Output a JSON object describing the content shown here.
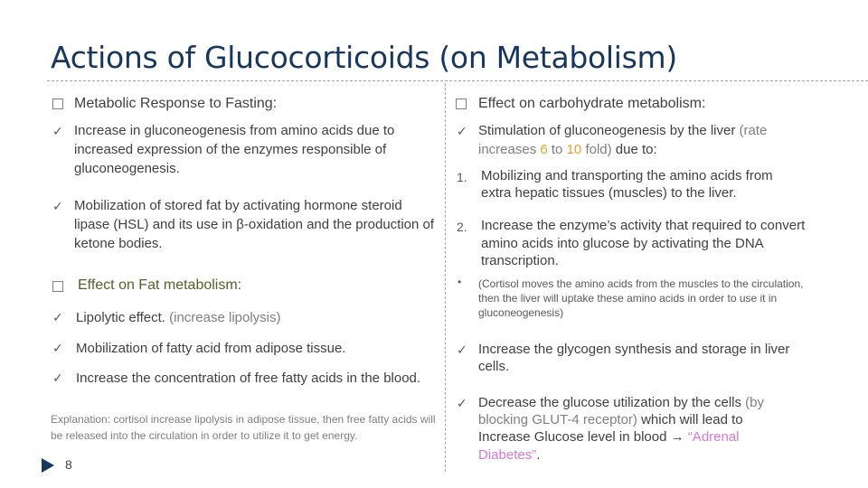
{
  "title": "Actions of Glucocorticoids (on Metabolism)",
  "left": {
    "heading1": "Metabolic Response to Fasting:",
    "item1": "Increase in gluconeogenesis from amino acids due to increased expression of the enzymes responsible of gluconeogenesis.",
    "item2": "Mobilization of stored fat by activating  hormone steroid lipase (HSL) and its use in β-oxidation and the production of ketone bodies.",
    "heading2": "Effect on Fat metabolism:",
    "item3_main": "Lipolytic effect.",
    "item3_note": "(increase lipolysis)",
    "item4": "Mobilization of fatty acid from adipose tissue.",
    "item5": "Increase the concentration of free fatty acids in the blood.",
    "explanation": "Explanation:  cortisol increase lipolysis in adipose tissue, then free fatty acids will be released into the circulation in order to utilize it to get energy."
  },
  "right": {
    "heading": "Effect on carbohydrate metabolism:",
    "item1_a": "Stimulation of gluconeogenesis by the liver",
    "item1_b": "(rate",
    "item1_c": "increases",
    "item1_d": "6",
    "item1_e": "to",
    "item1_f": "10",
    "item1_g": "fold)",
    "item1_h": "due to:",
    "num1": "1.",
    "sub1": "Mobilizing and transporting the amino acids from extra hepatic tissues (muscles) to the liver.",
    "num2": "2.",
    "sub2": "Increase the enzyme’s activity that required to convert amino acids into glucose by activating the DNA transcription.",
    "note": "(Cortisol moves the amino acids from the muscles to the circulation, then the liver will uptake these amino acids in order to use it in gluconeogenesis)",
    "item2": "Increase the glycogen synthesis and storage in liver cells.",
    "item3_a": "Decrease the glucose utilization by the cells",
    "item3_b": "(by blocking GLUT-4 receptor)",
    "item3_c": "which will lead to Increase Glucose level in blood",
    "item3_d": "“Adrenal Diabetes”",
    "item3_e": "."
  },
  "symbols": {
    "check": "✓",
    "dot": "•",
    "arrow": "→"
  },
  "page_number": "8"
}
